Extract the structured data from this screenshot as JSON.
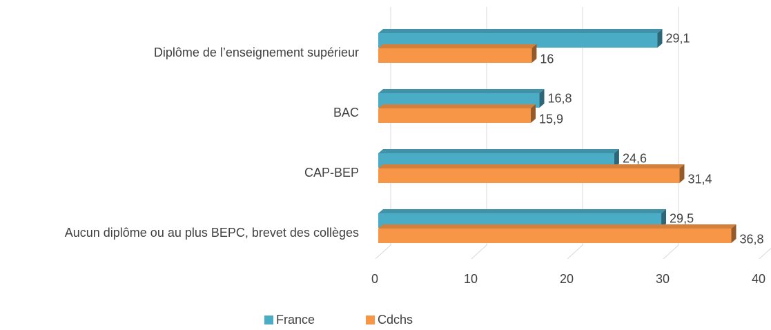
{
  "chart_data": {
    "type": "bar",
    "orientation": "horizontal",
    "categories": [
      "Diplôme de l’enseignement supérieur",
      "BAC",
      "CAP-BEP",
      "Aucun diplôme ou au plus BEPC, brevet des collèges"
    ],
    "series": [
      {
        "name": "France",
        "color": "#4bacc6",
        "values": [
          29.1,
          16.8,
          24.6,
          29.5
        ],
        "value_labels": [
          "29,1",
          "16,8",
          "24,6",
          "29,5"
        ]
      },
      {
        "name": "Cdchs",
        "color": "#f79646",
        "values": [
          16,
          15.9,
          31.4,
          36.8
        ],
        "value_labels": [
          "16",
          "15,9",
          "31,4",
          "36,8"
        ]
      }
    ],
    "xlim": [
      0,
      40
    ],
    "xticks": [
      0,
      10,
      20,
      30,
      40
    ],
    "grid": true,
    "legend": "bottom"
  }
}
